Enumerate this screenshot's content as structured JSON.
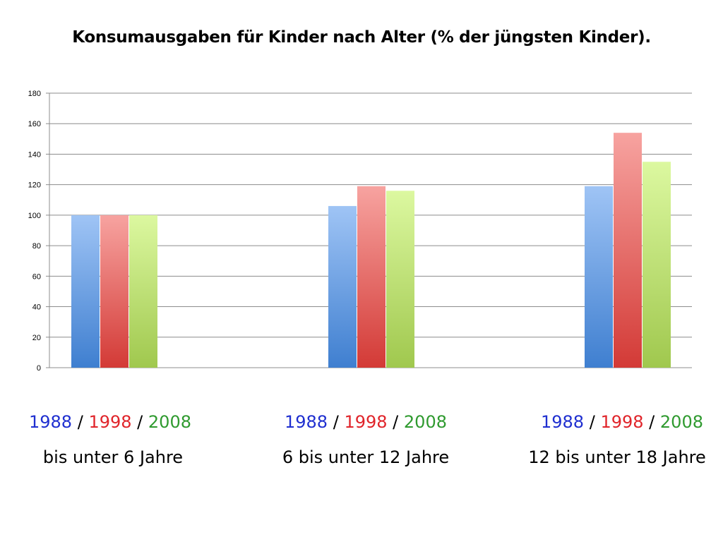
{
  "title": "Konsumausgaben für Kinder nach Alter (% der jüngsten Kinder).",
  "colors": {
    "s1988": {
      "top": "#9fc4f5",
      "bottom": "#3f7fd0"
    },
    "s1998": {
      "top": "#f7a3a0",
      "bottom": "#d33a36"
    },
    "s2008": {
      "top": "#dcf8a0",
      "bottom": "#a0c84e"
    },
    "grid": "#8c8c8c",
    "label1988": "#1f2fd0",
    "label1998": "#e0242a",
    "label2008": "#2f9a2f"
  },
  "groups": [
    {
      "years": [
        "1988",
        "1998",
        "2008"
      ],
      "age": "bis unter 6 Jahre"
    },
    {
      "years": [
        "1988",
        "1998",
        "2008"
      ],
      "age": "6 bis unter 12 Jahre"
    },
    {
      "years": [
        "1988",
        "1998",
        "2008"
      ],
      "age": "12 bis unter 18 Jahre"
    }
  ],
  "separator": "/",
  "chart_data": {
    "type": "bar",
    "title": "Konsumausgaben für Kinder nach Alter (% der jüngsten Kinder).",
    "categories": [
      "bis unter 6 Jahre",
      "6 bis unter 12 Jahre",
      "12 bis unter 18 Jahre"
    ],
    "series": [
      {
        "name": "1988",
        "values": [
          100,
          106,
          119
        ]
      },
      {
        "name": "1998",
        "values": [
          100,
          119,
          154
        ]
      },
      {
        "name": "2008",
        "values": [
          100,
          116,
          135
        ]
      }
    ],
    "ylim": [
      0,
      180
    ],
    "yticks": [
      0,
      20,
      40,
      60,
      80,
      100,
      120,
      140,
      160,
      180
    ],
    "grid": true,
    "legend": "none"
  }
}
